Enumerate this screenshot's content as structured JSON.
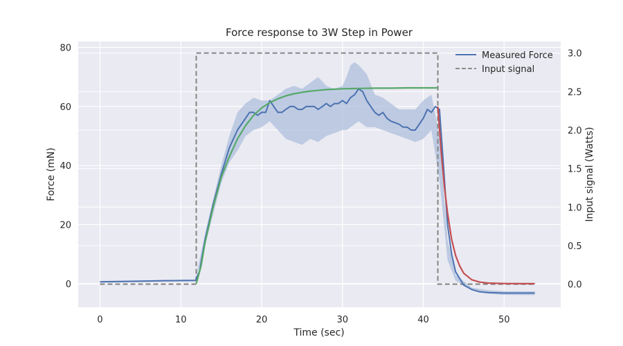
{
  "chart_data": {
    "type": "line",
    "title": "Force response to 3W Step in Power",
    "xlabel": "Time (sec)",
    "ylabel": "Force (mN)",
    "y2label": "Input signal (Watts)",
    "xlim": [
      -2.7,
      57
    ],
    "ylim": [
      -8,
      82
    ],
    "y2lim": [
      -0.3,
      3.15
    ],
    "xticks": [
      0,
      10,
      20,
      30,
      40,
      50
    ],
    "yticks": [
      0,
      20,
      40,
      60,
      80
    ],
    "y2ticks": [
      0.0,
      0.5,
      1.0,
      1.5,
      2.0,
      2.5,
      3.0
    ],
    "y2ticklabels": [
      "0.0",
      "0.5",
      "1.0",
      "1.5",
      "2.0",
      "2.5",
      "3.0"
    ],
    "grid": true,
    "legend": {
      "position": "top-right",
      "entries": [
        "Measured Force",
        "Input signal"
      ]
    },
    "colors": {
      "background": "#eaeaf2",
      "grid": "#ffffff",
      "measured": "#4c72b0",
      "band": "#a9bcdc",
      "rise_fit": "#55a868",
      "decay_fit": "#c44e52",
      "input": "#8c8c8c"
    },
    "series": [
      {
        "name": "Measured Force",
        "axis": "left",
        "style": "solid",
        "x": [
          0,
          4,
          8,
          11.8,
          12.3,
          13,
          14,
          15,
          16,
          17,
          17.5,
          18,
          18.5,
          19,
          19.5,
          20,
          20.5,
          21,
          21.5,
          22,
          22.5,
          23,
          23.5,
          24,
          24.5,
          25,
          25.5,
          26,
          26.5,
          27,
          27.5,
          28,
          28.5,
          29,
          29.5,
          30,
          30.5,
          31,
          31.5,
          32,
          32.5,
          33,
          33.5,
          34,
          34.5,
          35,
          35.5,
          36,
          36.5,
          37,
          37.5,
          38,
          38.5,
          39,
          39.5,
          40,
          40.5,
          41,
          41.5,
          42,
          42.5,
          43,
          43.5,
          44,
          45,
          46,
          47,
          48,
          50,
          52,
          53.8
        ],
        "y": [
          0.6,
          0.8,
          1.0,
          1.1,
          4,
          15,
          27,
          37,
          46,
          52,
          54,
          56,
          58,
          58,
          57,
          58,
          58,
          62,
          60,
          58,
          58,
          59,
          60,
          60,
          59,
          59,
          60,
          60,
          60,
          59,
          60,
          61,
          60,
          61,
          61,
          62,
          61,
          63,
          64,
          66,
          65,
          62,
          60,
          58,
          57,
          58,
          56,
          55,
          54.5,
          54,
          53,
          53,
          52,
          52,
          54,
          56,
          59,
          58,
          60,
          59,
          40,
          20,
          10,
          4,
          -0.5,
          -2,
          -2.8,
          -3.0,
          -3.2,
          -3.2,
          -3.2
        ]
      },
      {
        "name": "",
        "axis": "left",
        "style": "band",
        "x": [
          0,
          11.8,
          13,
          15,
          16,
          17,
          18,
          19,
          20,
          21,
          22,
          23,
          24,
          25,
          26,
          27,
          28,
          29,
          30,
          30.5,
          31,
          31.5,
          32,
          33,
          34,
          35,
          36,
          37,
          38,
          39,
          40,
          41,
          42,
          43,
          44,
          46,
          48,
          50,
          53.8
        ],
        "lower": [
          0.3,
          0.8,
          13,
          34,
          41,
          45,
          50,
          52,
          53,
          55,
          52,
          49,
          48,
          47,
          49,
          48,
          50,
          51,
          52,
          52,
          53,
          54,
          55,
          53,
          53,
          52,
          51,
          50,
          49,
          48,
          49,
          52,
          35,
          8,
          1,
          -2.3,
          -3.4,
          -3.8,
          -3.9
        ],
        "upper": [
          0.9,
          1.4,
          17,
          40,
          50,
          58,
          61,
          63,
          62,
          62,
          64,
          66,
          67,
          66,
          68,
          70,
          67,
          66,
          67,
          70,
          74,
          75,
          74,
          71,
          64,
          63,
          61,
          59,
          59,
          59,
          62,
          64,
          50,
          15,
          3,
          -1.4,
          -2.2,
          -2.6,
          -2.6
        ]
      },
      {
        "name": "",
        "axis": "left",
        "style": "solid",
        "x": [
          11.9,
          12.5,
          13,
          14,
          15,
          16,
          17,
          18,
          19,
          20,
          21,
          22,
          23,
          24,
          25,
          26,
          28,
          30,
          32,
          34,
          36,
          38,
          40,
          41.8
        ],
        "y": [
          0,
          6,
          14,
          26,
          36,
          43,
          49,
          53.5,
          57,
          59.5,
          61.3,
          62.6,
          63.6,
          64.3,
          64.8,
          65.2,
          65.7,
          66.0,
          66.1,
          66.2,
          66.2,
          66.3,
          66.3,
          66.3
        ]
      },
      {
        "name": "",
        "axis": "left",
        "style": "solid",
        "x": [
          41.8,
          42.2,
          42.6,
          43,
          43.5,
          44,
          44.5,
          45,
          46,
          47,
          48,
          50,
          52,
          53.8
        ],
        "y": [
          60,
          45,
          33,
          24,
          15,
          9.5,
          6,
          3.5,
          1.3,
          0.5,
          0.2,
          0.05,
          0,
          0
        ]
      },
      {
        "name": "Input signal",
        "axis": "right",
        "style": "dashed",
        "x": [
          0,
          11.9,
          11.9,
          41.8,
          41.8,
          53.8
        ],
        "y": [
          0,
          0,
          3.0,
          3.0,
          0,
          0
        ]
      }
    ]
  }
}
